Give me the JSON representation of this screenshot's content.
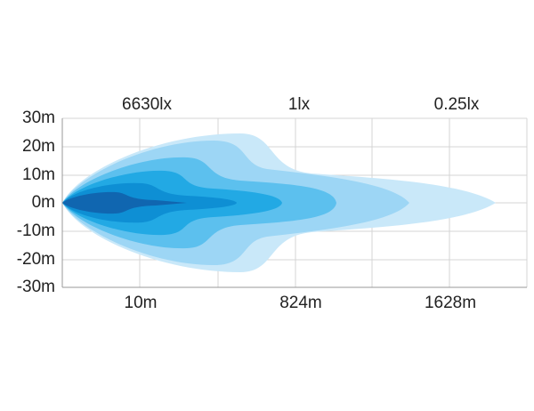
{
  "y_axis": {
    "labels": [
      "30m",
      "20m",
      "10m",
      "0m",
      "-10m",
      "-20m",
      "-30m"
    ]
  },
  "top_labels": [
    "6630lx",
    "1lx",
    "0.25lx"
  ],
  "bottom_labels": [
    "10m",
    "824m",
    "1628m"
  ]
}
